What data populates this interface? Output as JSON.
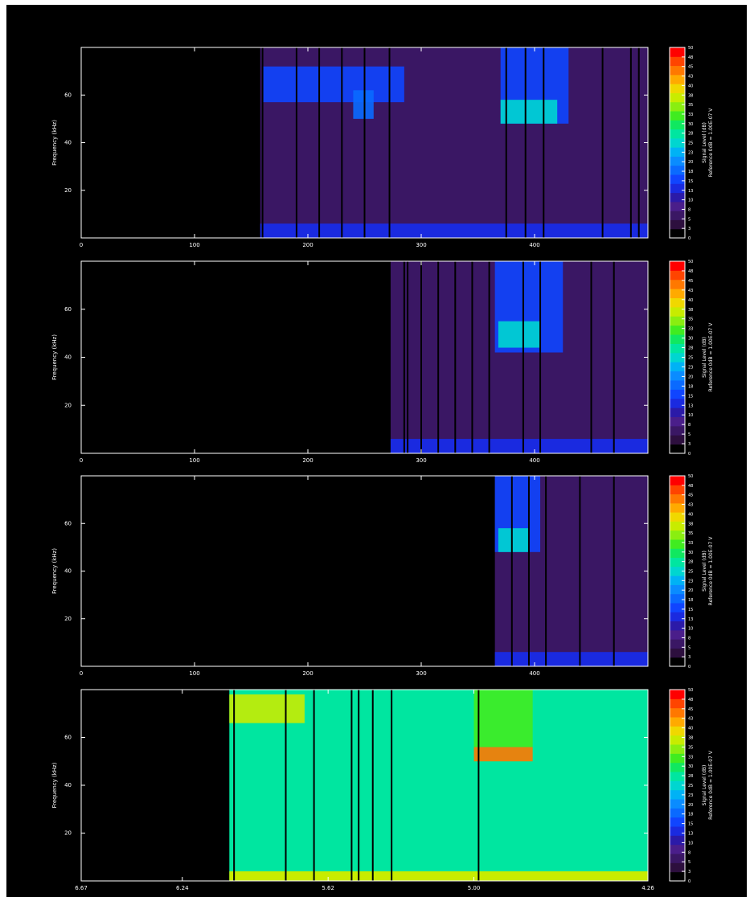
{
  "colors": {
    "background": "#000000",
    "axis": "#ffffff",
    "colormap": [
      "#000000",
      "#2d0f3e",
      "#3a1764",
      "#4a1e8a",
      "#2b1aa8",
      "#1a2ae0",
      "#1045ff",
      "#0a6aff",
      "#0a8cff",
      "#00b2f5",
      "#00d6d0",
      "#00e6a0",
      "#10e860",
      "#40ec20",
      "#8aee10",
      "#c8ec00",
      "#f0d800",
      "#ffaa00",
      "#ff7800",
      "#ff4400",
      "#ff0000"
    ]
  },
  "chart_data": [
    {
      "type": "heatmap",
      "xlabel": "",
      "ylabel": "Frequency (kHz)",
      "xlim": [
        0,
        500
      ],
      "ylim": [
        0,
        80
      ],
      "xticks": [
        {
          "value": 0,
          "label": "0"
        },
        {
          "value": 100,
          "label": "100"
        },
        {
          "value": 200,
          "label": "200"
        },
        {
          "value": 300,
          "label": "300"
        },
        {
          "value": 400,
          "label": "400"
        }
      ],
      "yticks": [
        {
          "value": 20,
          "label": "20"
        },
        {
          "value": 40,
          "label": "40"
        },
        {
          "value": 60,
          "label": "60"
        }
      ],
      "data_start_x": 158,
      "background_level_db": 6,
      "low_band": {
        "from": 0,
        "to": 6,
        "level_db": 12
      },
      "features": [
        {
          "x_from": 160,
          "x_to": 285,
          "y_from": 57,
          "y_to": 72,
          "level_db": 16
        },
        {
          "x_from": 370,
          "x_to": 430,
          "y_from": 48,
          "y_to": 80,
          "level_db": 14
        },
        {
          "x_from": 370,
          "x_to": 420,
          "y_from": 48,
          "y_to": 58,
          "level_db": 24
        },
        {
          "x_from": 240,
          "x_to": 258,
          "y_from": 50,
          "y_to": 62,
          "level_db": 18
        }
      ],
      "dark_lines_x": [
        160,
        190,
        210,
        230,
        250,
        272,
        375,
        392,
        408,
        460,
        485,
        492
      ],
      "colorbar": {
        "label": "Signal Level (dB)",
        "reference": "Reference 0dB = 1.00E-07 V",
        "ticks": [
          "0",
          "3",
          "5",
          "8",
          "10",
          "13",
          "15",
          "18",
          "20",
          "23",
          "25",
          "28",
          "30",
          "33",
          "35",
          "38",
          "40",
          "43",
          "45",
          "48",
          "50"
        ]
      }
    },
    {
      "type": "heatmap",
      "xlabel": "",
      "ylabel": "Frequency (kHz)",
      "xlim": [
        0,
        500
      ],
      "ylim": [
        0,
        80
      ],
      "xticks": [
        {
          "value": 0,
          "label": "0"
        },
        {
          "value": 100,
          "label": "100"
        },
        {
          "value": 200,
          "label": "200"
        },
        {
          "value": 300,
          "label": "300"
        },
        {
          "value": 400,
          "label": "400"
        }
      ],
      "yticks": [
        {
          "value": 20,
          "label": "20"
        },
        {
          "value": 40,
          "label": "40"
        },
        {
          "value": 60,
          "label": "60"
        }
      ],
      "data_start_x": 273,
      "background_level_db": 6,
      "low_band": {
        "from": 0,
        "to": 6,
        "level_db": 12
      },
      "features": [
        {
          "x_from": 365,
          "x_to": 425,
          "y_from": 42,
          "y_to": 80,
          "level_db": 14
        },
        {
          "x_from": 368,
          "x_to": 405,
          "y_from": 44,
          "y_to": 55,
          "level_db": 26
        }
      ],
      "dark_lines_x": [
        285,
        288,
        300,
        315,
        330,
        345,
        360,
        390,
        405,
        450,
        470
      ],
      "colorbar": {
        "label": "Signal Level (dB)",
        "reference": "Reference 0dB = 1.00E-07 V",
        "ticks": [
          "0",
          "3",
          "5",
          "8",
          "10",
          "13",
          "15",
          "18",
          "20",
          "23",
          "25",
          "28",
          "30",
          "33",
          "35",
          "38",
          "40",
          "43",
          "45",
          "48",
          "50"
        ]
      }
    },
    {
      "type": "heatmap",
      "xlabel": "",
      "ylabel": "Frequency (kHz)",
      "xlim": [
        0,
        500
      ],
      "ylim": [
        0,
        80
      ],
      "xticks": [
        {
          "value": 0,
          "label": "0"
        },
        {
          "value": 100,
          "label": "100"
        },
        {
          "value": 200,
          "label": "200"
        },
        {
          "value": 300,
          "label": "300"
        },
        {
          "value": 400,
          "label": "400"
        }
      ],
      "yticks": [
        {
          "value": 20,
          "label": "20"
        },
        {
          "value": 40,
          "label": "40"
        },
        {
          "value": 60,
          "label": "60"
        }
      ],
      "data_start_x": 365,
      "background_level_db": 6,
      "low_band": {
        "from": 0,
        "to": 6,
        "level_db": 12
      },
      "features": [
        {
          "x_from": 365,
          "x_to": 405,
          "y_from": 48,
          "y_to": 80,
          "level_db": 14
        },
        {
          "x_from": 368,
          "x_to": 395,
          "y_from": 48,
          "y_to": 58,
          "level_db": 24
        }
      ],
      "dark_lines_x": [
        380,
        395,
        410,
        440,
        470
      ],
      "colorbar": {
        "label": "Signal Level (dB)",
        "reference": "Reference 0dB = 1.00E-07 V",
        "ticks": [
          "0",
          "3",
          "5",
          "8",
          "10",
          "13",
          "15",
          "18",
          "20",
          "23",
          "25",
          "28",
          "30",
          "33",
          "35",
          "38",
          "40",
          "43",
          "45",
          "48",
          "50"
        ]
      }
    },
    {
      "type": "heatmap",
      "xlabel": "",
      "ylabel": "Frequency (kHz)",
      "xlim": [
        6.67,
        4.26
      ],
      "ylim": [
        0,
        80
      ],
      "xticks": [
        {
          "value": 6.67,
          "label": "6.67"
        },
        {
          "value": 6.24,
          "label": "6.24"
        },
        {
          "value": 5.62,
          "label": "5.62"
        },
        {
          "value": 5.0,
          "label": "5.00"
        },
        {
          "value": 4.26,
          "label": "4.26"
        }
      ],
      "yticks": [
        {
          "value": 20,
          "label": "20"
        },
        {
          "value": 40,
          "label": "40"
        },
        {
          "value": 60,
          "label": "60"
        }
      ],
      "data_start_x": 6.04,
      "background_level_db": 28,
      "low_band": {
        "from": 0,
        "to": 4,
        "level_db": 38
      },
      "features": [
        {
          "x_from": 6.04,
          "x_to": 5.72,
          "y_from": 66,
          "y_to": 78,
          "level_db": 38
        },
        {
          "x_from": 5.0,
          "x_to": 4.75,
          "y_from": 50,
          "y_to": 56,
          "level_db": 44
        },
        {
          "x_from": 5.0,
          "x_to": 4.75,
          "y_from": 56,
          "y_to": 80,
          "level_db": 32
        }
      ],
      "dark_lines_x": [
        6.02,
        5.8,
        5.68,
        5.52,
        5.49,
        5.43,
        5.35,
        4.98
      ],
      "colorbar": {
        "label": "Signal Level (dB)",
        "reference": "Reference 0dB = 1.00E-07 V",
        "ticks": [
          "0",
          "3",
          "5",
          "8",
          "10",
          "13",
          "15",
          "18",
          "20",
          "23",
          "25",
          "28",
          "30",
          "33",
          "35",
          "38",
          "40",
          "43",
          "45",
          "48",
          "50"
        ]
      }
    }
  ]
}
